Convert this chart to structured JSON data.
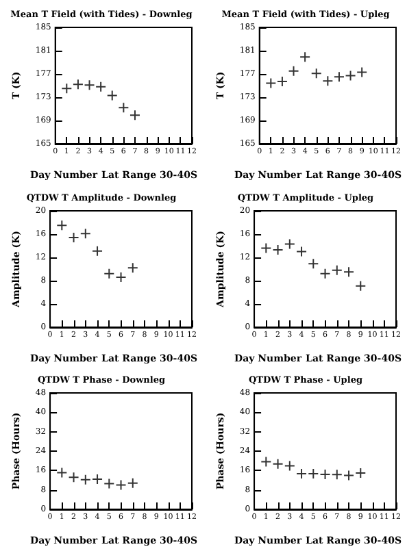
{
  "chart_data": [
    {
      "type": "scatter",
      "title": "Mean T Field (with Tides) - Downleg",
      "xlabel": "Day Number",
      "ylabel": "T (K)",
      "annotations": [
        "Lat Range 30-40S"
      ],
      "x": [
        1,
        2,
        3,
        4,
        5,
        6,
        7
      ],
      "values": [
        174.5,
        175.2,
        175.1,
        174.8,
        173.3,
        171.2,
        169.9
      ],
      "color": "#000000",
      "marker": "cross",
      "xlim": [
        0,
        12
      ],
      "xticks": [
        0,
        1,
        2,
        3,
        4,
        5,
        6,
        7,
        8,
        9,
        10,
        11,
        12
      ],
      "ylim": [
        165,
        185
      ],
      "yticks": [
        165,
        169,
        173,
        177,
        181,
        185
      ],
      "grid": false
    },
    {
      "type": "scatter",
      "title": "Mean T Field (with Tides) - Upleg",
      "xlabel": "Day Number",
      "ylabel": "T (K)",
      "annotations": [
        "Lat Range 30-40S"
      ],
      "x": [
        1,
        2,
        3,
        4,
        5,
        6,
        7,
        8,
        9
      ],
      "values": [
        175.4,
        175.7,
        177.5,
        179.9,
        177.1,
        175.8,
        176.5,
        176.7,
        177.3
      ],
      "color": "#000000",
      "marker": "cross",
      "xlim": [
        0,
        12
      ],
      "xticks": [
        0,
        1,
        2,
        3,
        4,
        5,
        6,
        7,
        8,
        9,
        10,
        11,
        12
      ],
      "ylim": [
        165,
        185
      ],
      "yticks": [
        165,
        169,
        173,
        177,
        181,
        185
      ],
      "grid": false
    },
    {
      "type": "scatter",
      "title": "QTDW T Amplitude - Downleg",
      "xlabel": "Day Number",
      "ylabel": "Amplitude (K)",
      "annotations": [
        "Lat Range 30-40S"
      ],
      "x": [
        1,
        2,
        3,
        4,
        5,
        6,
        7
      ],
      "values": [
        17.5,
        15.4,
        16.1,
        13.1,
        9.2,
        8.6,
        10.2
      ],
      "color": "#000000",
      "marker": "cross",
      "xlim": [
        0,
        12
      ],
      "xticks": [
        0,
        1,
        2,
        3,
        4,
        5,
        6,
        7,
        8,
        9,
        10,
        11,
        12
      ],
      "ylim": [
        0,
        20
      ],
      "yticks": [
        0,
        4,
        8,
        12,
        16,
        20
      ],
      "grid": false
    },
    {
      "type": "scatter",
      "title": "QTDW T Amplitude - Upleg",
      "xlabel": "Day Number",
      "ylabel": "Amplitude (K)",
      "annotations": [
        "Lat Range 30-40S"
      ],
      "x": [
        1,
        2,
        3,
        4,
        5,
        6,
        7,
        8,
        9
      ],
      "values": [
        13.6,
        13.3,
        14.3,
        13.0,
        10.9,
        9.2,
        9.8,
        9.5,
        7.1
      ],
      "color": "#000000",
      "marker": "cross",
      "xlim": [
        0,
        12
      ],
      "xticks": [
        0,
        1,
        2,
        3,
        4,
        5,
        6,
        7,
        8,
        9,
        10,
        11,
        12
      ],
      "ylim": [
        0,
        20
      ],
      "yticks": [
        0,
        4,
        8,
        12,
        16,
        20
      ],
      "grid": false
    },
    {
      "type": "scatter",
      "title": "QTDW T Phase - Downleg",
      "xlabel": "Day Number",
      "ylabel": "Phase (Hours)",
      "annotations": [
        "Lat Range 30-40S"
      ],
      "x": [
        1,
        2,
        3,
        4,
        5,
        6,
        7
      ],
      "values": [
        15.1,
        13.2,
        12.2,
        12.4,
        10.6,
        10.0,
        10.8
      ],
      "color": "#000000",
      "marker": "cross",
      "xlim": [
        0,
        12
      ],
      "xticks": [
        0,
        1,
        2,
        3,
        4,
        5,
        6,
        7,
        8,
        9,
        10,
        11,
        12
      ],
      "ylim": [
        0,
        48
      ],
      "yticks": [
        0,
        8,
        16,
        24,
        32,
        40,
        48
      ],
      "grid": false
    },
    {
      "type": "scatter",
      "title": "QTDW T Phase - Upleg",
      "xlabel": "Day Number",
      "ylabel": "Phase (Hours)",
      "annotations": [
        "Lat Range 30-40S"
      ],
      "x": [
        1,
        2,
        3,
        4,
        5,
        6,
        7,
        8,
        9
      ],
      "values": [
        19.6,
        18.7,
        17.9,
        14.7,
        14.7,
        14.4,
        14.3,
        14.0,
        15.0
      ],
      "color": "#000000",
      "marker": "cross",
      "xlim": [
        0,
        12
      ],
      "xticks": [
        0,
        1,
        2,
        3,
        4,
        5,
        6,
        7,
        8,
        9,
        10,
        11,
        12
      ],
      "ylim": [
        0,
        48
      ],
      "yticks": [
        0,
        8,
        16,
        24,
        32,
        40,
        48
      ],
      "grid": false
    }
  ]
}
